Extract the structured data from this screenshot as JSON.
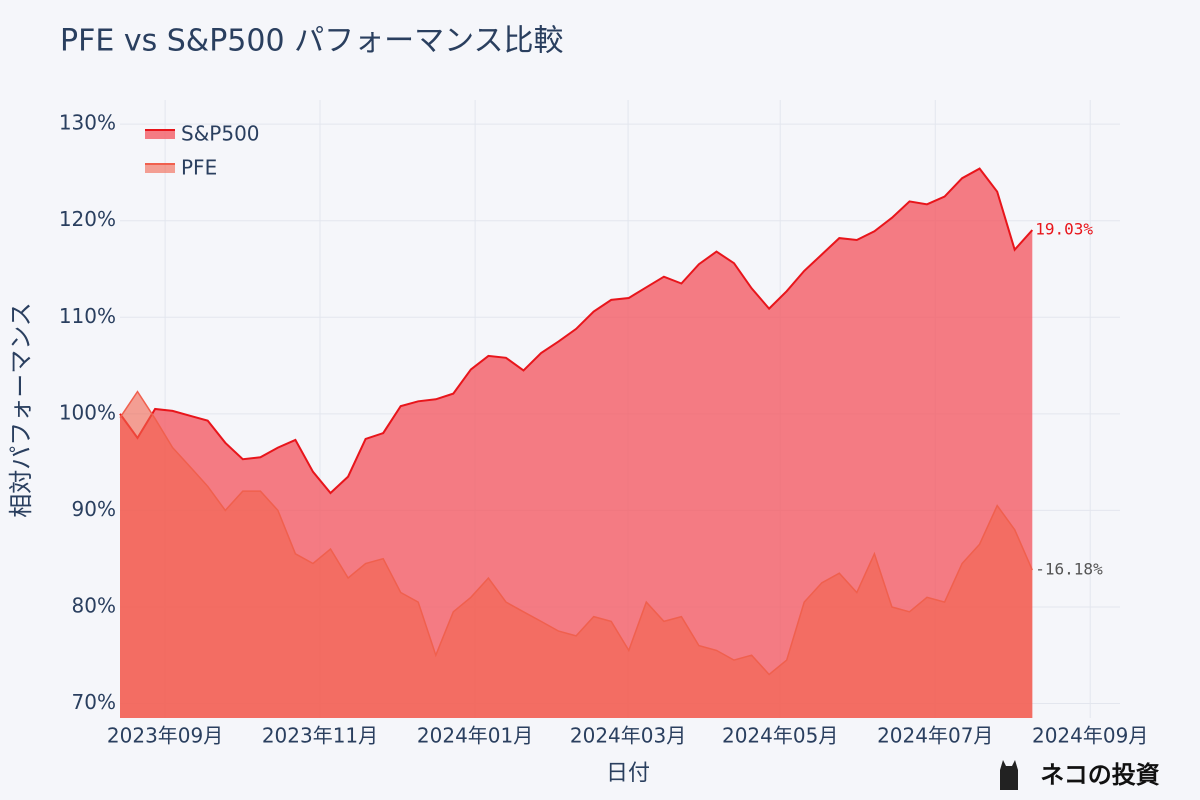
{
  "chart_data": {
    "type": "area",
    "title": "PFE vs S&P500 パフォーマンス比較",
    "x_label": "日付",
    "y_label": "相対パフォーマンス",
    "watermark": "ネコの投資",
    "legend": "top-left",
    "grid": true,
    "xlim": [
      0,
      57
    ],
    "xticks": [
      {
        "value": 2.57,
        "label": "2023年09月"
      },
      {
        "value": 11.4,
        "label": "2023年11月"
      },
      {
        "value": 20.24,
        "label": "2024年01月"
      },
      {
        "value": 28.96,
        "label": "2024年03月"
      },
      {
        "value": 37.63,
        "label": "2024年05月"
      },
      {
        "value": 46.47,
        "label": "2024年07月"
      },
      {
        "value": 55.3,
        "label": "2024年09月"
      }
    ],
    "ylim": [
      68.5,
      132.5
    ],
    "yticks": [
      {
        "value": 70,
        "label": "70%"
      },
      {
        "value": 80,
        "label": "80%"
      },
      {
        "value": 90,
        "label": "90%"
      },
      {
        "value": 100,
        "label": "100%"
      },
      {
        "value": 110,
        "label": "110%"
      },
      {
        "value": 120,
        "label": "120%"
      },
      {
        "value": 130,
        "label": "130%"
      }
    ],
    "series": [
      {
        "name": "S&P500",
        "color": "#e8151b",
        "fill": "rgba(243,88,98,0.78)",
        "end_label": "19.03%",
        "values": [
          100,
          97.5,
          100.5,
          100.3,
          99.8,
          99.3,
          97.0,
          95.3,
          95.5,
          96.5,
          97.3,
          94.0,
          91.8,
          93.5,
          97.4,
          98.0,
          100.8,
          101.3,
          101.5,
          102.1,
          104.6,
          106.0,
          105.8,
          104.5,
          106.3,
          107.5,
          108.8,
          110.6,
          111.8,
          112.0,
          113.1,
          114.2,
          113.5,
          115.5,
          116.8,
          115.6,
          113.0,
          110.9,
          112.7,
          114.8,
          116.5,
          118.2,
          118.0,
          118.9,
          120.3,
          122.0,
          121.7,
          122.5,
          124.4,
          125.4,
          123.0,
          117.0,
          119.03
        ]
      },
      {
        "name": "PFE",
        "color": "#f0604e",
        "fill": "rgba(241,100,78,0.6)",
        "end_label": "-16.18%",
        "values": [
          99.6,
          102.3,
          99.5,
          96.5,
          94.5,
          92.5,
          90.0,
          92.0,
          92.0,
          90.0,
          85.5,
          84.5,
          86.0,
          83.0,
          84.5,
          85.0,
          81.5,
          80.5,
          75.0,
          79.5,
          81.0,
          83.0,
          80.5,
          79.5,
          78.5,
          77.5,
          77.0,
          79.0,
          78.5,
          75.5,
          80.5,
          78.5,
          79.0,
          76.0,
          75.5,
          74.5,
          75.0,
          73.0,
          74.5,
          80.5,
          82.5,
          83.5,
          81.5,
          85.5,
          80.0,
          79.5,
          81.0,
          80.5,
          84.5,
          86.5,
          90.5,
          88.0,
          83.82
        ]
      }
    ]
  }
}
